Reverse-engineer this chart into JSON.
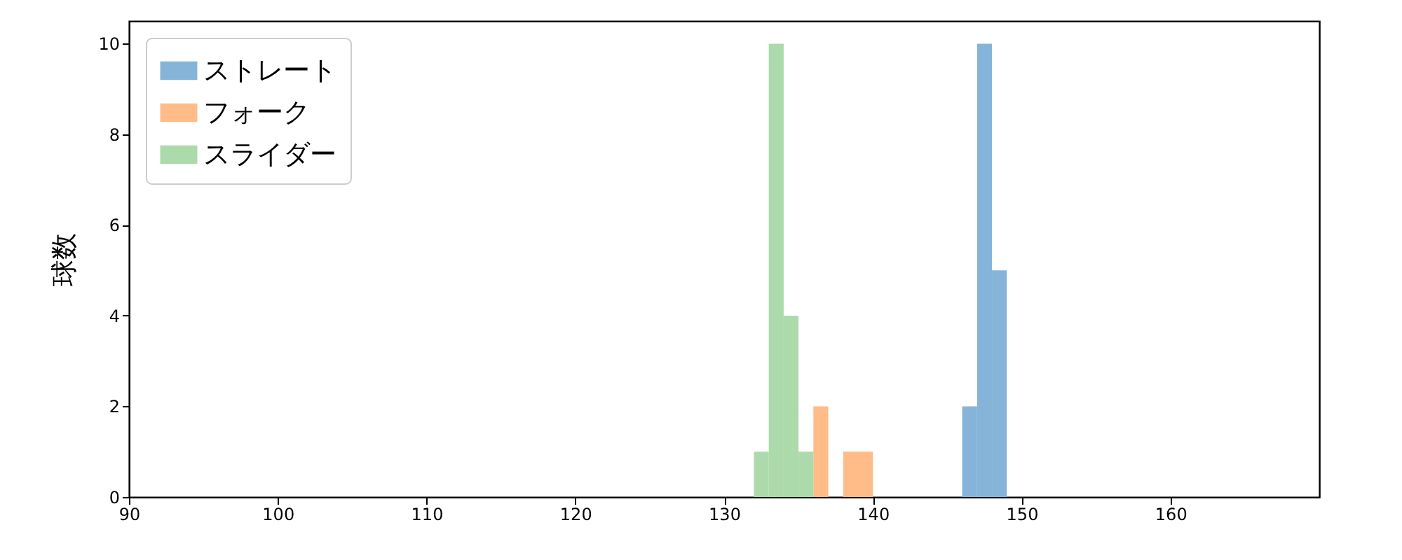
{
  "chart_data": {
    "type": "histogram",
    "ylabel": "球数",
    "xlim": [
      90,
      170
    ],
    "xticks": [
      90,
      100,
      110,
      120,
      130,
      140,
      150,
      160
    ],
    "ylim": [
      0,
      10.5
    ],
    "yticks": [
      0,
      2,
      4,
      6,
      8,
      10
    ],
    "grid": false,
    "legend": "top left",
    "bins": [
      132,
      133,
      134,
      135,
      136,
      137,
      138,
      139,
      140,
      141,
      142,
      143,
      144,
      145,
      146,
      147,
      148,
      149
    ],
    "series": [
      {
        "name": "ストレート",
        "color": "#86b4d9",
        "values": [
          null,
          null,
          null,
          null,
          null,
          null,
          null,
          null,
          null,
          null,
          null,
          null,
          null,
          null,
          2,
          10,
          5
        ]
      },
      {
        "name": "フォーク",
        "color": "#ffbb88",
        "values": [
          null,
          null,
          null,
          null,
          2,
          null,
          1,
          1,
          null,
          null,
          null,
          null,
          null,
          null,
          null,
          null,
          null
        ]
      },
      {
        "name": "スライダー",
        "color": "#acdaab",
        "values": [
          1,
          10,
          4,
          1,
          null,
          null,
          null,
          null,
          null,
          null,
          null,
          null,
          null,
          null,
          null,
          null,
          null
        ]
      }
    ]
  }
}
